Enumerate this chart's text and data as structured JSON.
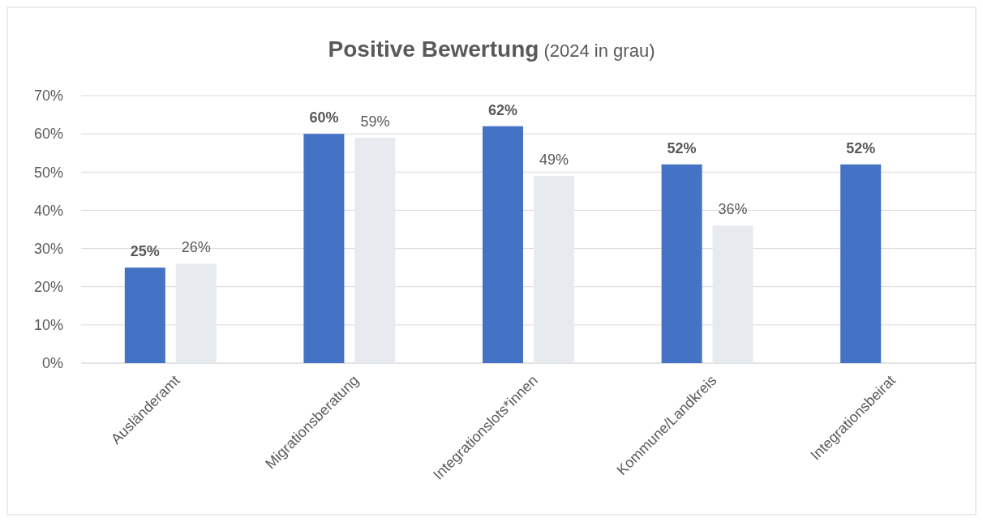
{
  "chart_data": {
    "type": "bar",
    "title": "Positive Bewertung",
    "subtitle": "(2024 in grau)",
    "categories": [
      "Ausländeramt",
      "Migrationsberatung",
      "Integrationslots*innen",
      "Kommune/Landkreis",
      "Integrationsbeirat"
    ],
    "series": [
      {
        "color": "#4472c4",
        "values": [
          25,
          60,
          62,
          52,
          52
        ],
        "value_labels": [
          "25%",
          "60%",
          "62%",
          "52%",
          "52%"
        ]
      },
      {
        "color": "#e7eaef",
        "values": [
          26,
          59,
          49,
          36,
          null
        ],
        "value_labels": [
          "26%",
          "59%",
          "49%",
          "36%",
          null
        ]
      }
    ],
    "ylim": [
      0,
      70
    ],
    "yticks": [
      {
        "value": 0,
        "label": "0%"
      },
      {
        "value": 10,
        "label": "10%"
      },
      {
        "value": 20,
        "label": "20%"
      },
      {
        "value": 30,
        "label": "30%"
      },
      {
        "value": 40,
        "label": "40%"
      },
      {
        "value": 50,
        "label": "50%"
      },
      {
        "value": 60,
        "label": "60%"
      },
      {
        "value": 70,
        "label": "70%"
      }
    ],
    "grid": "y"
  }
}
